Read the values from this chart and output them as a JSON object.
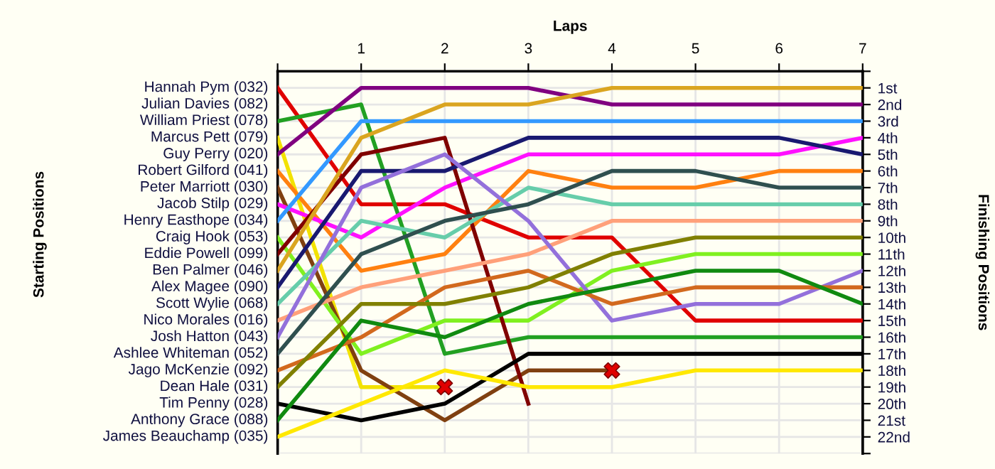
{
  "chart_data": {
    "type": "line",
    "xlabel": "Laps",
    "legend_title": "Starting Positions",
    "y2label": "Finishing Positions",
    "annotations": [
      "Julian Davies (082)"
    ],
    "xlim": [
      0,
      7
    ],
    "xticks": [
      {
        "value": 0,
        "label": null
      },
      1,
      2,
      3,
      4,
      5,
      6,
      7
    ],
    "y2lim": [
      23,
      0
    ],
    "y2ticks": [
      {
        "value": 0,
        "label": null
      },
      {
        "value": 1,
        "label": "1st"
      },
      {
        "value": 2,
        "label": "2nd"
      },
      {
        "value": 3,
        "label": "3rd"
      },
      {
        "value": 4,
        "label": "4th"
      },
      {
        "value": 5,
        "label": "5th"
      },
      {
        "value": 6,
        "label": "6th"
      },
      {
        "value": 7,
        "label": "7th"
      },
      {
        "value": 8,
        "label": "8th"
      },
      {
        "value": 9,
        "label": "9th"
      },
      {
        "value": 10,
        "label": "10th"
      },
      {
        "value": 11,
        "label": "11th"
      },
      {
        "value": 12,
        "label": "12th"
      },
      {
        "value": 13,
        "label": "13th"
      },
      {
        "value": 14,
        "label": "14th"
      },
      {
        "value": 15,
        "label": "15th"
      },
      {
        "value": 16,
        "label": "16th"
      },
      {
        "value": 17,
        "label": "17th"
      },
      {
        "value": 18,
        "label": "18th"
      },
      {
        "value": 19,
        "label": "19th"
      },
      {
        "value": 20,
        "label": "20th"
      },
      {
        "value": 21,
        "label": "21st"
      },
      {
        "value": 22,
        "label": "22nd"
      },
      {
        "value": 23,
        "label": null
      }
    ],
    "grid": true,
    "legend": "left",
    "marker": "none",
    "line_style": "solid",
    "x": [
      0,
      1,
      2,
      3,
      4,
      5,
      6,
      7
    ],
    "series": [
      {
        "name": "Hannah Pym (032)",
        "axis": "y2",
        "color": "#e00000",
        "values": [
          1,
          8,
          8,
          10,
          10,
          15,
          15,
          15
        ]
      },
      {
        "name": "William Priest (078)",
        "axis": "y2",
        "color": "#22a022",
        "values": [
          3,
          2,
          17,
          16,
          16,
          16,
          16,
          16
        ]
      },
      {
        "name": "Marcus Pett (079)",
        "axis": "y2",
        "color": "#f2e200",
        "values": [
          4,
          19,
          19,
          null,
          null,
          null,
          null,
          null
        ]
      },
      {
        "name": "Guy Perry (020)",
        "axis": "y2",
        "color": "#800080",
        "values": [
          5,
          1,
          1,
          1,
          2,
          2,
          2,
          2
        ]
      },
      {
        "name": "Robert Gilford (041)",
        "axis": "y2",
        "color": "#ff8010",
        "values": [
          6,
          12,
          11,
          6,
          7,
          7,
          6,
          6
        ]
      },
      {
        "name": "Peter Marriott (030)",
        "axis": "y2",
        "color": "#804010",
        "values": [
          7,
          18,
          21,
          18,
          18,
          null,
          null,
          null
        ]
      },
      {
        "name": "Jacob Stilp (029)",
        "axis": "y2",
        "color": "#ff10ff",
        "values": [
          8,
          10,
          7,
          5,
          5,
          5,
          5,
          4
        ]
      },
      {
        "name": "Henry Easthope (034)",
        "axis": "y2",
        "color": "#3399ff",
        "values": [
          9,
          3,
          3,
          3,
          3,
          3,
          3,
          3
        ]
      },
      {
        "name": "Craig Hook (053)",
        "axis": "y2",
        "color": "#80f020",
        "values": [
          10,
          17,
          15,
          15,
          12,
          11,
          11,
          11
        ]
      },
      {
        "name": "Eddie Powell (099)",
        "axis": "y2",
        "color": "#800000",
        "values": [
          11,
          5,
          4,
          20,
          null,
          null,
          null,
          null
        ]
      },
      {
        "name": "Ben Palmer (046)",
        "axis": "y2",
        "color": "#daa520",
        "values": [
          12,
          4,
          2,
          2,
          1,
          1,
          1,
          1
        ]
      },
      {
        "name": "Alex Magee (090)",
        "axis": "y2",
        "color": "#191970",
        "values": [
          13,
          6,
          6,
          4,
          4,
          4,
          4,
          5
        ]
      },
      {
        "name": "Scott Wylie (068)",
        "axis": "y2",
        "color": "#66cdaa",
        "values": [
          14,
          9,
          10,
          7,
          8,
          8,
          8,
          8
        ]
      },
      {
        "name": "Nico Morales (016)",
        "axis": "y2",
        "color": "#ffa07a",
        "values": [
          15,
          13,
          12,
          11,
          9,
          9,
          9,
          9
        ]
      },
      {
        "name": "Josh Hatton (043)",
        "axis": "y2",
        "color": "#9370db",
        "values": [
          16,
          7,
          5,
          9,
          15,
          14,
          14,
          12
        ]
      },
      {
        "name": "Ashlee Whiteman (052)",
        "axis": "y2",
        "color": "#2f4f4f",
        "values": [
          17,
          11,
          9,
          8,
          6,
          6,
          7,
          7
        ]
      },
      {
        "name": "Jago McKenzie (092)",
        "axis": "y2",
        "color": "#d2691e",
        "values": [
          18,
          16,
          13,
          12,
          14,
          13,
          13,
          13
        ]
      },
      {
        "name": "Dean Hale (031)",
        "axis": "y2",
        "color": "#808000",
        "values": [
          19,
          14,
          14,
          13,
          11,
          10,
          10,
          10
        ]
      },
      {
        "name": "Tim Penny (028)",
        "axis": "y2",
        "color": "#000000",
        "values": [
          20,
          21,
          20,
          17,
          17,
          17,
          17,
          17
        ]
      },
      {
        "name": "Anthony Grace (088)",
        "axis": "y2",
        "color": "#108a10",
        "values": [
          21,
          15,
          16,
          14,
          13,
          12,
          12,
          14
        ]
      },
      {
        "name": "James Beauchamp (035)",
        "axis": "y2",
        "color": "#ffe800",
        "values": [
          22,
          20,
          18,
          19,
          19,
          18,
          18,
          18
        ]
      },
      {
        "type": "scatter",
        "axis": "y2",
        "color": "#e00000",
        "marker": "cross",
        "x": [
          2,
          4
        ],
        "values": [
          19,
          18
        ]
      }
    ]
  }
}
